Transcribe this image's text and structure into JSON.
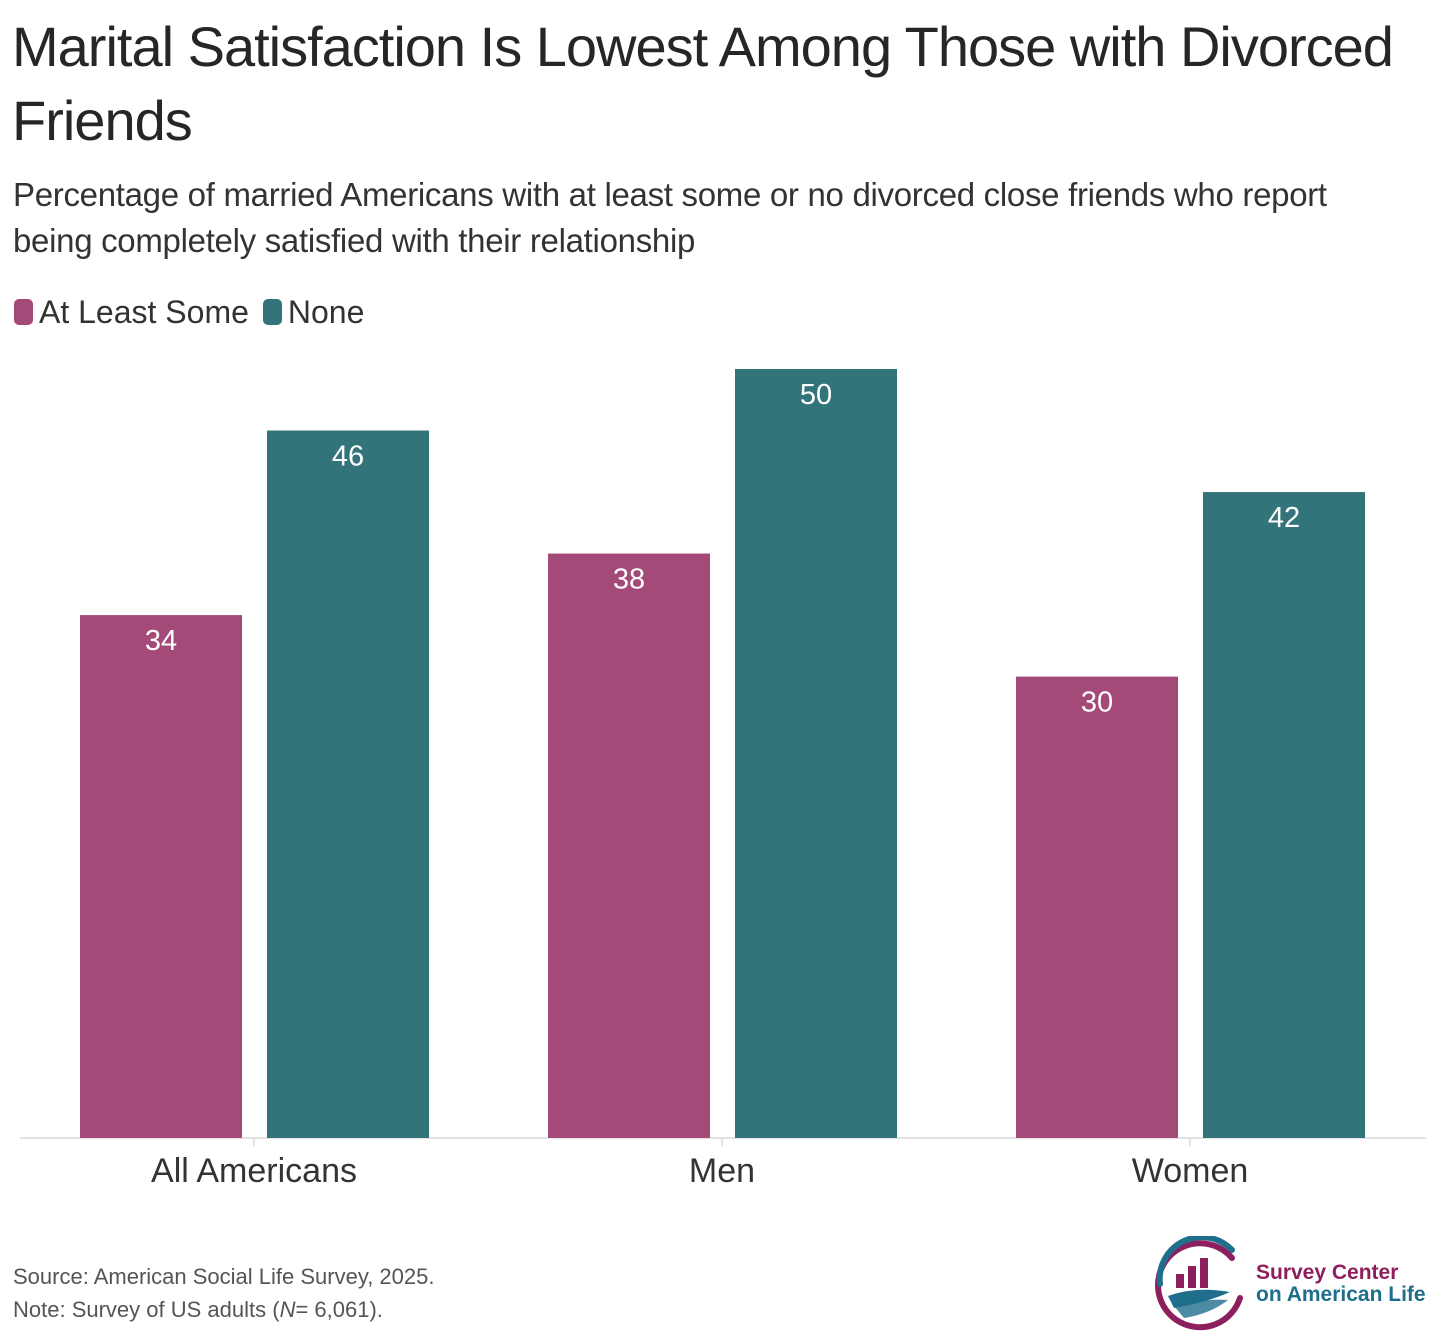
{
  "title": "Marital Satisfaction Is Lowest Among Those with Divorced Friends",
  "subtitle": "Percentage of married Americans with at least some or no divorced close friends who report being completely satisfied with their relationship",
  "legend": [
    {
      "label": "At Least Some",
      "color": "#A34A78"
    },
    {
      "label": "None",
      "color": "#327479"
    }
  ],
  "chart_data": {
    "type": "bar",
    "title": "Marital Satisfaction Is Lowest Among Those with Divorced Friends",
    "subtitle": "Percentage of married Americans with at least some or no divorced close friends who report being completely satisfied with their relationship",
    "categories": [
      "All Americans",
      "Men",
      "Women"
    ],
    "series": [
      {
        "name": "At Least Some",
        "values": [
          34,
          38,
          30
        ],
        "color": "#A34A78"
      },
      {
        "name": "None",
        "values": [
          46,
          50,
          42
        ],
        "color": "#327479"
      }
    ],
    "xlabel": "",
    "ylabel": "",
    "ylim": [
      0,
      50
    ],
    "grid": false,
    "legend_position": "top-left",
    "data_labels": true
  },
  "footer": {
    "source": "Source: American Social Life Survey, 2025.",
    "note_prefix": "Note: Survey of US adults (",
    "note_n": "N",
    "note_suffix": "= 6,061)."
  },
  "logo": {
    "line1": "Survey Center",
    "line2": "on American Life",
    "color_text": "#8E1F5E",
    "color_text2": "#1F6E8C",
    "icon": "survey-center-logo-icon"
  }
}
